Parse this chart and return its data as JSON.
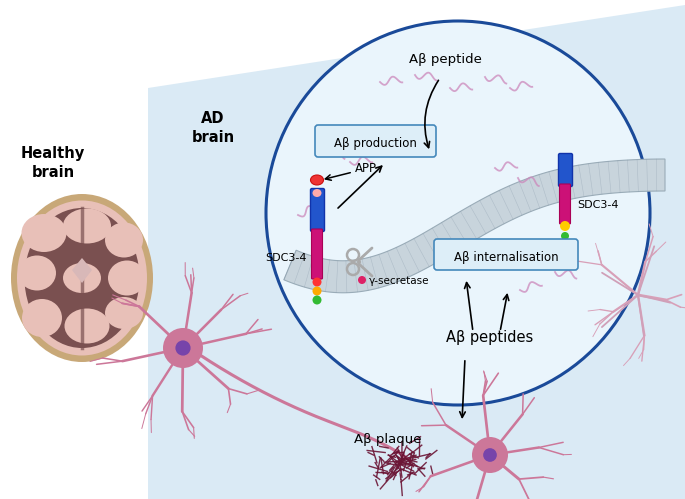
{
  "bg_color": "#ffffff",
  "light_blue": "#daeaf5",
  "circle_edge": "#1a4a99",
  "circle_fill": "#eaf5fc",
  "membrane_fill": "#c8d4dc",
  "membrane_edge": "#9aacb8",
  "box_fill": "#ddeef8",
  "box_edge": "#4488bb",
  "neuron_pink": "#cc7799",
  "neuron_dark_pink": "#b05575",
  "plaque_color": "#6b1535",
  "brain_outer": "#c8a878",
  "brain_fill": "#e8c0b8",
  "brain_dark": "#8c6060",
  "squiggle": "#cc99bb",
  "labels": {
    "healthy_brain": "Healthy\nbrain",
    "ad_brain": "AD\nbrain",
    "ab_peptide_top": "Aβ peptide",
    "ab_production": "Aβ production",
    "app": "APP",
    "sdc_left": "SDC3-4",
    "sdc_right": "SDC3-4",
    "gamma": "γ-secretase",
    "ab_intern": "Aβ internalisation",
    "ab_peptides": "Aβ peptides",
    "ab_plaque": "Aβ plaque"
  }
}
